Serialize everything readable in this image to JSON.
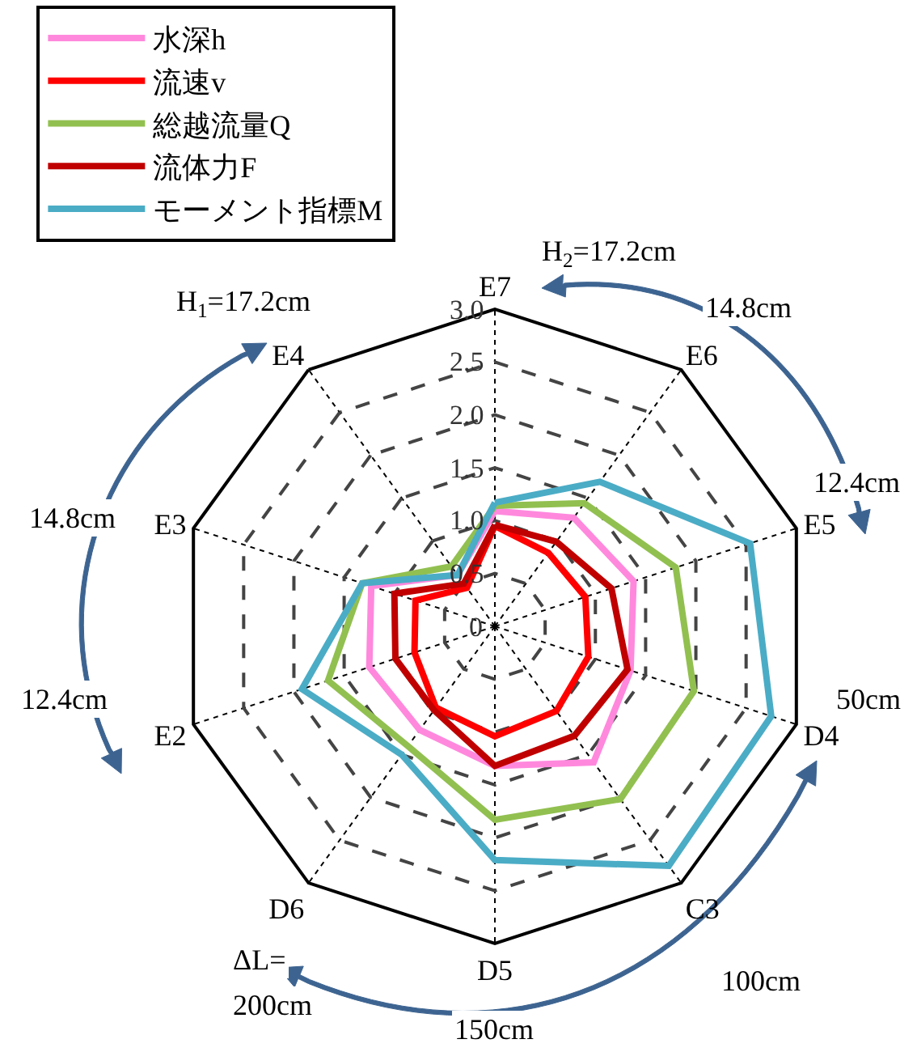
{
  "chart_data": {
    "type": "radar",
    "categories": [
      "E7",
      "E6",
      "E5",
      "D4",
      "C3",
      "D5",
      "D6",
      "E2",
      "E3",
      "E4"
    ],
    "series": [
      {
        "name": "水深h",
        "color": "#ff88dd",
        "values": [
          1.09,
          1.27,
          1.38,
          1.35,
          1.59,
          1.32,
          1.21,
          1.25,
          1.23,
          0.6
        ]
      },
      {
        "name": "流速v",
        "color": "#ff0000",
        "values": [
          0.95,
          0.86,
          0.9,
          0.93,
          0.99,
          1.04,
          0.95,
          0.8,
          0.79,
          0.45
        ]
      },
      {
        "name": "総越流量Q",
        "color": "#92c050",
        "values": [
          1.14,
          1.44,
          1.8,
          1.98,
          2.02,
          1.83,
          1.4,
          1.66,
          1.32,
          0.7
        ]
      },
      {
        "name": "流体力F",
        "color": "#c00000",
        "values": [
          0.96,
          0.99,
          1.16,
          1.32,
          1.28,
          1.32,
          0.98,
          0.99,
          1.0,
          0.5
        ]
      },
      {
        "name": "モーメント指標M",
        "color": "#4bacc6",
        "values": [
          1.17,
          1.69,
          2.54,
          2.75,
          2.8,
          2.21,
          1.5,
          1.92,
          1.32,
          0.6
        ]
      }
    ],
    "ylim": [
      0,
      3
    ],
    "yticks": [
      0,
      0.5,
      {
        "value": 1,
        "label": "1.0"
      },
      1.5,
      {
        "value": 2,
        "label": "2.0"
      },
      2.5,
      {
        "value": 3,
        "label": "3.0"
      }
    ],
    "grid": true,
    "legend": "top left",
    "line_style": "solid",
    "annotations": [
      "H$_{1}$=17.2cm",
      "14.8cm",
      "12.4cm",
      "H$_{2}$=17.2cm",
      "14.8cm",
      "12.4cm",
      "50cm",
      "100cm",
      "150cm",
      "ΔL=",
      "200cm"
    ]
  }
}
